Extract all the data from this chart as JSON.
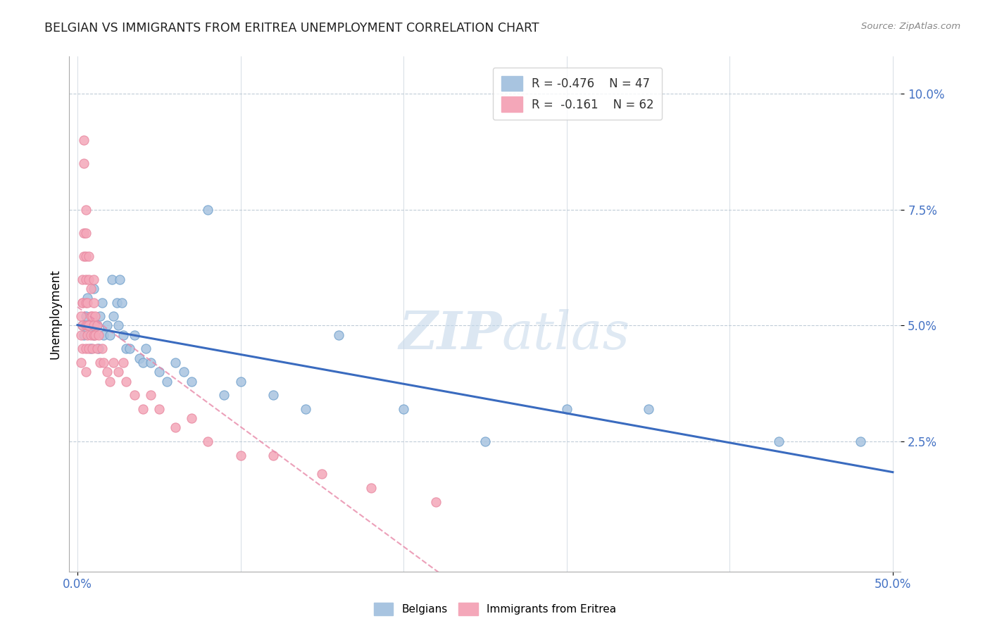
{
  "title": "BELGIAN VS IMMIGRANTS FROM ERITREA UNEMPLOYMENT CORRELATION CHART",
  "source": "Source: ZipAtlas.com",
  "ylabel": "Unemployment",
  "yticks_labels": [
    "2.5%",
    "5.0%",
    "7.5%",
    "10.0%"
  ],
  "ytick_vals": [
    0.025,
    0.05,
    0.075,
    0.1
  ],
  "xlim": [
    -0.005,
    0.505
  ],
  "ylim": [
    -0.003,
    0.108
  ],
  "legend_blue_label": "R = -0.476    N = 47",
  "legend_pink_label": "R =  -0.161    N = 62",
  "bottom_legend_blue": "Belgians",
  "bottom_legend_pink": "Immigrants from Eritrea",
  "blue_color": "#a8c4e0",
  "pink_color": "#f4a7b9",
  "blue_edge_color": "#6fa0cc",
  "pink_edge_color": "#e888a0",
  "blue_line_color": "#3a6bbf",
  "pink_line_color": "#e888a8",
  "blue_scatter_x": [
    0.003,
    0.004,
    0.005,
    0.006,
    0.007,
    0.008,
    0.009,
    0.01,
    0.01,
    0.012,
    0.013,
    0.014,
    0.015,
    0.016,
    0.018,
    0.02,
    0.021,
    0.022,
    0.024,
    0.025,
    0.026,
    0.027,
    0.028,
    0.03,
    0.032,
    0.035,
    0.038,
    0.04,
    0.042,
    0.045,
    0.05,
    0.055,
    0.06,
    0.065,
    0.07,
    0.08,
    0.09,
    0.1,
    0.12,
    0.14,
    0.16,
    0.2,
    0.25,
    0.3,
    0.35,
    0.43,
    0.48
  ],
  "blue_scatter_y": [
    0.05,
    0.048,
    0.052,
    0.056,
    0.05,
    0.045,
    0.05,
    0.048,
    0.058,
    0.05,
    0.045,
    0.052,
    0.055,
    0.048,
    0.05,
    0.048,
    0.06,
    0.052,
    0.055,
    0.05,
    0.06,
    0.055,
    0.048,
    0.045,
    0.045,
    0.048,
    0.043,
    0.042,
    0.045,
    0.042,
    0.04,
    0.038,
    0.042,
    0.04,
    0.038,
    0.075,
    0.035,
    0.038,
    0.035,
    0.032,
    0.048,
    0.032,
    0.025,
    0.032,
    0.032,
    0.025,
    0.025
  ],
  "pink_scatter_x": [
    0.002,
    0.002,
    0.002,
    0.003,
    0.003,
    0.003,
    0.003,
    0.003,
    0.004,
    0.004,
    0.004,
    0.004,
    0.005,
    0.005,
    0.005,
    0.005,
    0.005,
    0.005,
    0.005,
    0.005,
    0.006,
    0.006,
    0.006,
    0.007,
    0.007,
    0.007,
    0.007,
    0.008,
    0.008,
    0.008,
    0.009,
    0.009,
    0.01,
    0.01,
    0.01,
    0.01,
    0.011,
    0.011,
    0.012,
    0.012,
    0.013,
    0.014,
    0.015,
    0.016,
    0.018,
    0.02,
    0.022,
    0.025,
    0.028,
    0.03,
    0.035,
    0.04,
    0.045,
    0.05,
    0.06,
    0.07,
    0.08,
    0.1,
    0.12,
    0.15,
    0.18,
    0.22
  ],
  "pink_scatter_y": [
    0.048,
    0.052,
    0.042,
    0.055,
    0.045,
    0.05,
    0.06,
    0.055,
    0.065,
    0.07,
    0.085,
    0.09,
    0.04,
    0.045,
    0.05,
    0.055,
    0.06,
    0.065,
    0.07,
    0.075,
    0.048,
    0.05,
    0.055,
    0.045,
    0.05,
    0.06,
    0.065,
    0.048,
    0.052,
    0.058,
    0.045,
    0.052,
    0.048,
    0.05,
    0.055,
    0.06,
    0.048,
    0.052,
    0.045,
    0.05,
    0.048,
    0.042,
    0.045,
    0.042,
    0.04,
    0.038,
    0.042,
    0.04,
    0.042,
    0.038,
    0.035,
    0.032,
    0.035,
    0.032,
    0.028,
    0.03,
    0.025,
    0.022,
    0.022,
    0.018,
    0.015,
    0.012
  ]
}
